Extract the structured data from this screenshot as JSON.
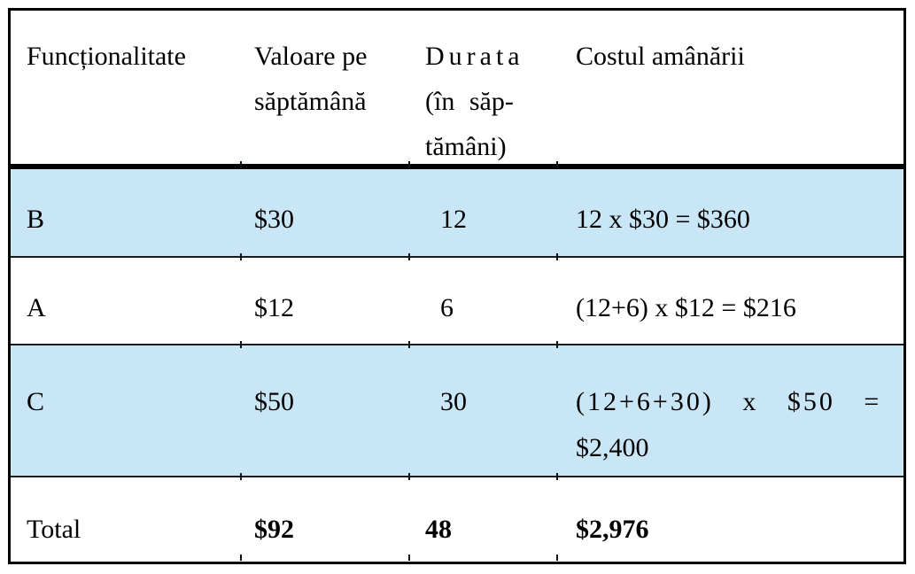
{
  "table": {
    "header": {
      "functionality": {
        "lines": [
          "Funcționalitate"
        ]
      },
      "value_per_week": {
        "lines": [
          "Valoare pe",
          "săptămână"
        ]
      },
      "duration": {
        "lines": [
          "Durata",
          "(în săp-",
          "tămâni)"
        ]
      },
      "cost_of_delay": {
        "lines": [
          "Costul amânării"
        ]
      }
    },
    "rows": [
      {
        "feature": "B",
        "value_per_week": "$30",
        "duration": "12",
        "cost_lines": [
          "12 x $30 = $360"
        ],
        "highlighted": true
      },
      {
        "feature": "A",
        "value_per_week": "$12",
        "duration": "6",
        "cost_lines": [
          "(12+6) x $12 = $216"
        ],
        "highlighted": false
      },
      {
        "feature": "C",
        "value_per_week": "$50",
        "duration": "30",
        "cost_lines": [
          "(12+6+30) x $50 =",
          "$2,400"
        ],
        "highlighted": true
      }
    ],
    "total_row": {
      "label": "Total",
      "value_per_week": "$92",
      "duration": "48",
      "cost": "$2,976"
    },
    "colors": {
      "highlight": "#c8e6f6",
      "border": "#000000",
      "separator": "#1a1a1a"
    }
  }
}
